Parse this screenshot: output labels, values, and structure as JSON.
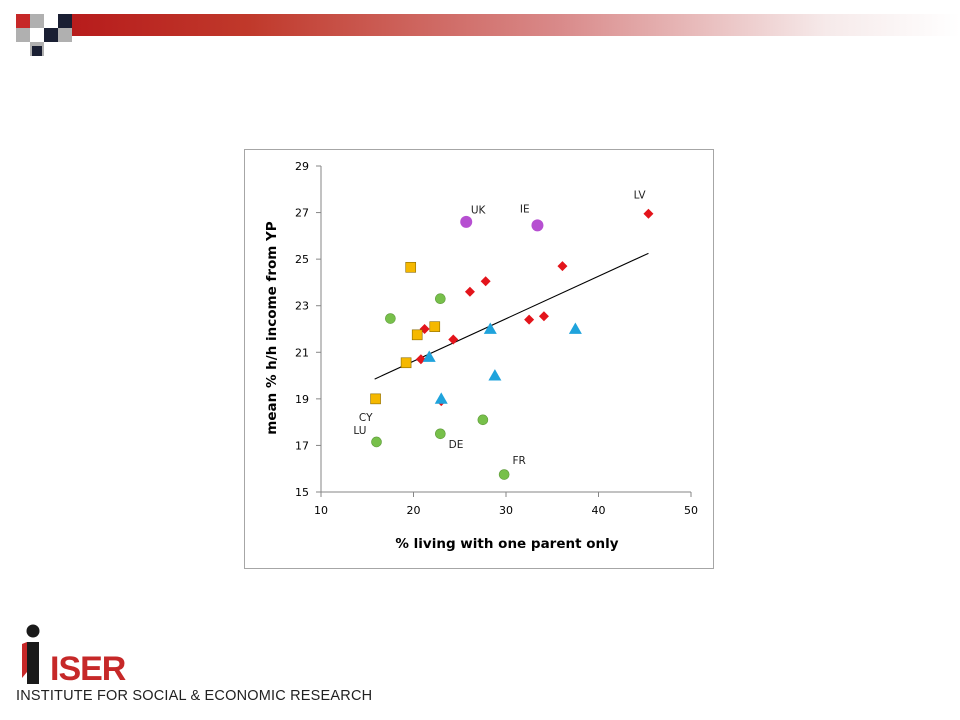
{
  "colors": {
    "accent_red": "#c62828",
    "dark_square": "#1a1f33",
    "grey_square": "#a9a9a9",
    "series_diamond": "#e3141b",
    "series_triangle": "#1fa3dc",
    "series_circle_green": "#77c04a",
    "series_circle_purple": "#b64fd1",
    "series_square": "#f5b800",
    "trendline": "#000000"
  },
  "logo": {
    "name": "ISER",
    "subtitle": "INSTITUTE FOR SOCIAL & ECONOMIC RESEARCH",
    "icon": "person-i-logo-icon"
  },
  "chart_data": {
    "type": "scatter",
    "xlabel": "% living with one parent only",
    "ylabel": "mean % h/h income from YP",
    "xlim": [
      10,
      50
    ],
    "ylim": [
      15,
      29
    ],
    "xticks": [
      10,
      20,
      30,
      40,
      50
    ],
    "yticks": [
      15,
      17,
      19,
      21,
      23,
      25,
      27,
      29
    ],
    "grid": false,
    "legend": "none",
    "series": [
      {
        "marker": "diamond",
        "color": "#e3141b",
        "points": [
          {
            "x": 45.4,
            "y": 26.95
          },
          {
            "x": 36.1,
            "y": 24.7
          },
          {
            "x": 27.8,
            "y": 24.05
          },
          {
            "x": 26.1,
            "y": 23.6
          },
          {
            "x": 32.5,
            "y": 22.4
          },
          {
            "x": 34.1,
            "y": 22.55
          },
          {
            "x": 21.2,
            "y": 22.0
          },
          {
            "x": 24.3,
            "y": 21.55
          },
          {
            "x": 20.8,
            "y": 20.7
          },
          {
            "x": 23.0,
            "y": 18.9
          }
        ]
      },
      {
        "marker": "triangle",
        "color": "#1fa3dc",
        "points": [
          {
            "x": 28.3,
            "y": 22.0
          },
          {
            "x": 37.5,
            "y": 22.0
          },
          {
            "x": 21.7,
            "y": 20.8
          },
          {
            "x": 28.8,
            "y": 20.0
          },
          {
            "x": 23.0,
            "y": 19.0
          }
        ]
      },
      {
        "marker": "circle",
        "color": "#77c04a",
        "points": [
          {
            "x": 22.9,
            "y": 23.3
          },
          {
            "x": 17.5,
            "y": 22.45
          },
          {
            "x": 27.5,
            "y": 18.1
          },
          {
            "x": 16.0,
            "y": 17.15
          },
          {
            "x": 22.9,
            "y": 17.5
          },
          {
            "x": 29.8,
            "y": 15.75
          }
        ]
      },
      {
        "marker": "circle",
        "color": "#b64fd1",
        "points": [
          {
            "x": 25.7,
            "y": 26.6
          },
          {
            "x": 33.4,
            "y": 26.45
          }
        ]
      },
      {
        "marker": "square",
        "color": "#f5b800",
        "points": [
          {
            "x": 19.7,
            "y": 24.65
          },
          {
            "x": 22.3,
            "y": 22.1
          },
          {
            "x": 20.4,
            "y": 21.75
          },
          {
            "x": 19.2,
            "y": 20.55
          },
          {
            "x": 15.9,
            "y": 19.0
          }
        ]
      }
    ],
    "trendline": {
      "x": [
        15.8,
        45.4
      ],
      "y": [
        19.85,
        25.25
      ]
    },
    "annotations": [
      {
        "text": "LV",
        "x": 43.8,
        "y": 27.6
      },
      {
        "text": "UK",
        "x": 26.2,
        "y": 26.95
      },
      {
        "text": "IE",
        "x": 31.5,
        "y": 27.0
      },
      {
        "text": "CY",
        "x": 14.1,
        "y": 18.05
      },
      {
        "text": "LU",
        "x": 13.5,
        "y": 17.5
      },
      {
        "text": "DE",
        "x": 23.8,
        "y": 16.9
      },
      {
        "text": "FR",
        "x": 30.7,
        "y": 16.2
      }
    ]
  }
}
